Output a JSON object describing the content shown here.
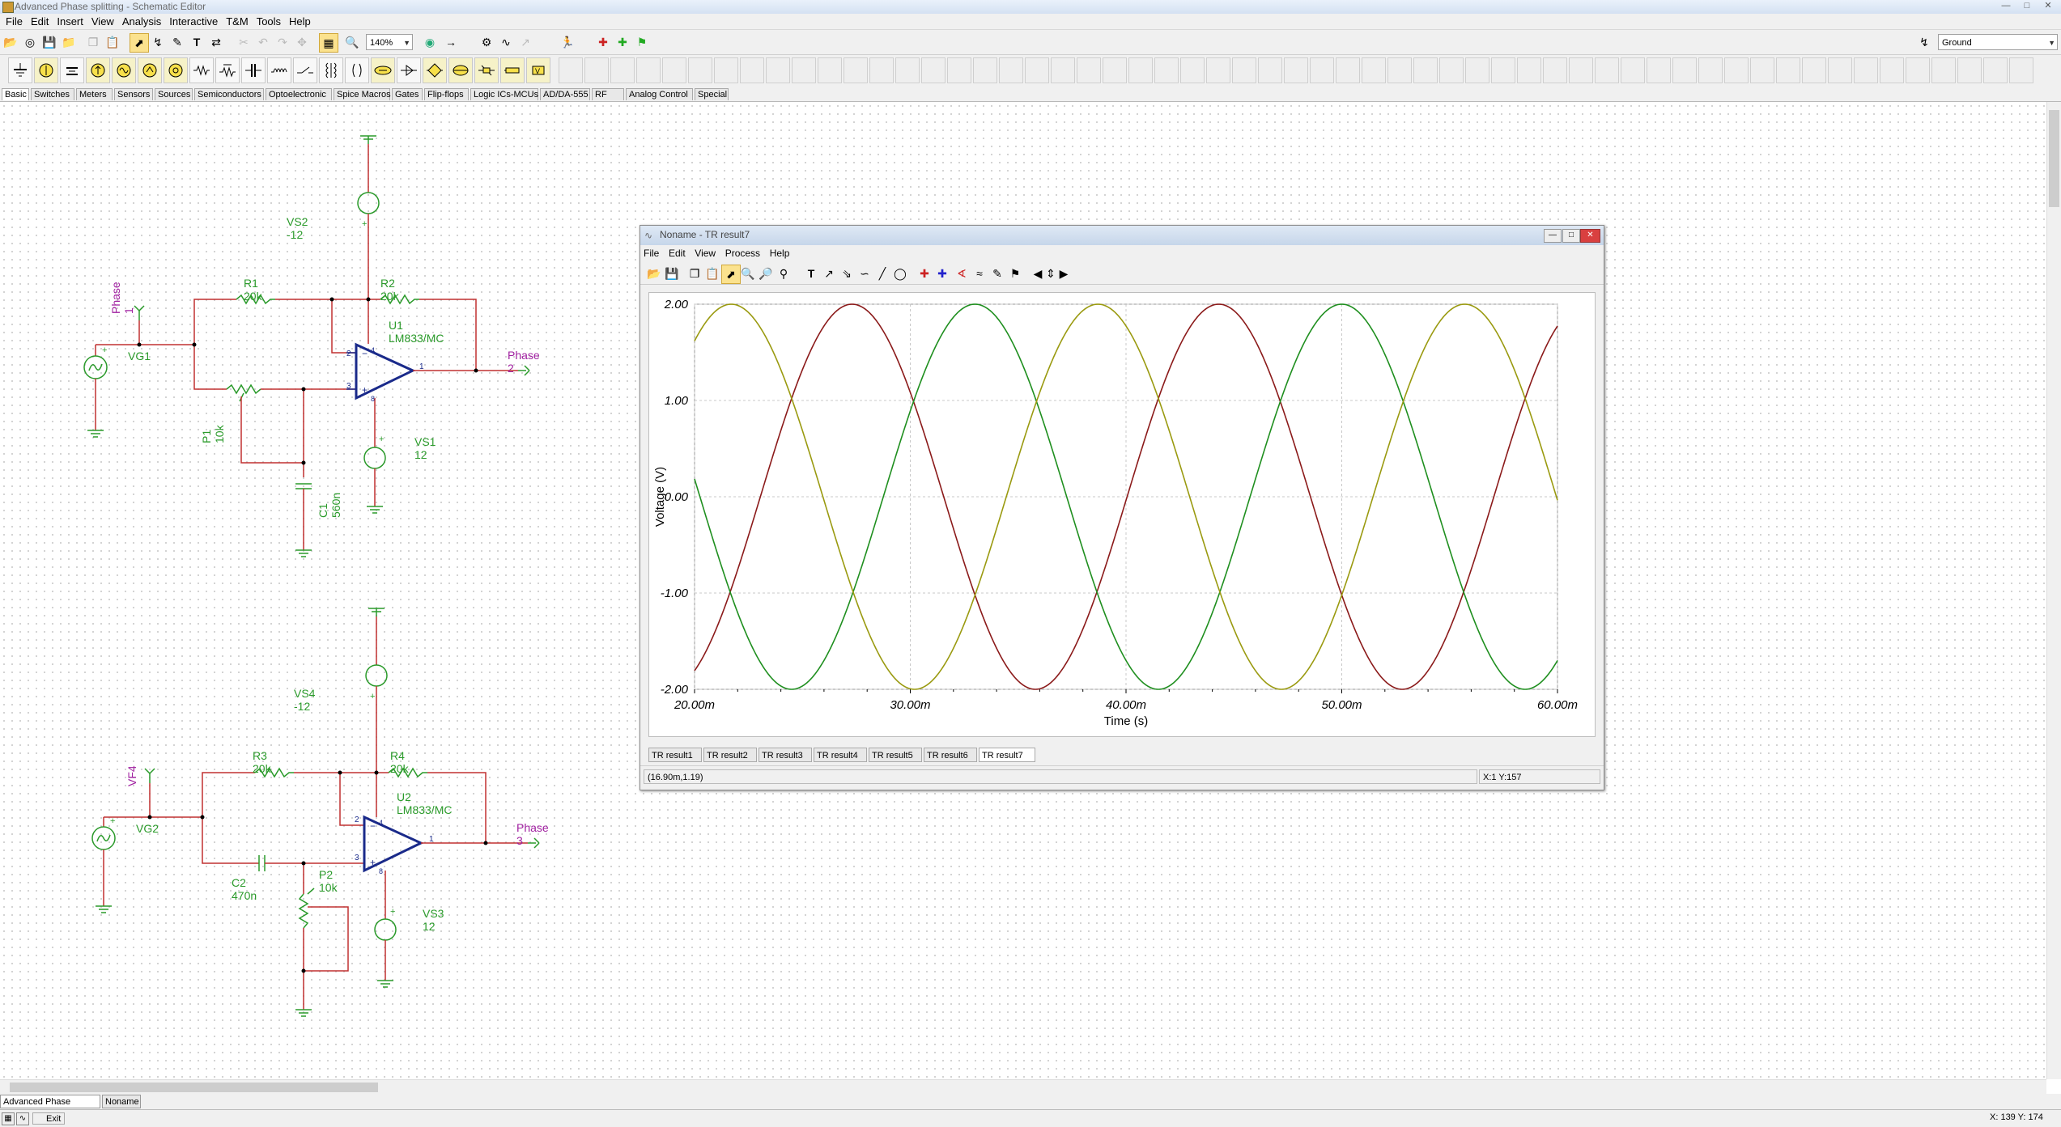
{
  "app": {
    "title": "Advanced Phase splitting - Schematic Editor",
    "menu": [
      "File",
      "Edit",
      "Insert",
      "View",
      "Analysis",
      "Interactive",
      "T&M",
      "Tools",
      "Help"
    ],
    "zoom": "140%",
    "node_select": "Ground"
  },
  "component_tabs": [
    "Basic",
    "Switches",
    "Meters",
    "Sensors",
    "Sources",
    "Semiconductors",
    "Optoelectronic",
    "Spice Macros",
    "Gates",
    "Flip-flops",
    "Logic ICs-MCUs",
    "AD/DA-555",
    "RF",
    "Analog Control",
    "Special"
  ],
  "schematic": {
    "vs2": "VS2 -12",
    "phase1": "Phase 1",
    "r1": "R1 20k",
    "r2": "R2 20k",
    "u1": "U1 LM833/MC",
    "vg1": "VG1",
    "phase2": "Phase 2",
    "p1": "P1 10k",
    "vs1": "VS1 12",
    "c1": "C1 560n",
    "vs4": "VS4 -12",
    "vf4": "VF4",
    "r3": "R3 20k",
    "r4": "R4 20k",
    "u2": "U2 LM833/MC",
    "vg2": "VG2",
    "phase3": "Phase 3",
    "c2": "C2 470n",
    "p2": "P2 10k",
    "vs3": "VS3 12",
    "pin2": "2",
    "pin3": "3",
    "pin1": "1",
    "pin4": "4",
    "pin8": "8",
    "pin2b": "2",
    "pin3b": "3",
    "pin1b": "1",
    "pin4b": "4",
    "pin8b": "8"
  },
  "tr_window": {
    "title": "Noname - TR result7",
    "menu": [
      "File",
      "Edit",
      "View",
      "Process",
      "Help"
    ],
    "tabs": [
      "TR result1",
      "TR result2",
      "TR result3",
      "TR result4",
      "TR result5",
      "TR result6",
      "TR result7"
    ],
    "status_left": "(16.90m,1.19)",
    "status_right": "X:1  Y:157"
  },
  "chart_data": {
    "type": "line",
    "xlabel": "Time (s)",
    "ylabel": "Voltage (V)",
    "xlim": [
      20,
      60
    ],
    "ylim": [
      -2,
      2
    ],
    "x_ticks": [
      "20.00m",
      "30.00m",
      "40.00m",
      "50.00m",
      "60.00m"
    ],
    "y_ticks": [
      "2.00",
      "1.00",
      "0.00",
      "-1.00",
      "-2.00"
    ],
    "grid": true,
    "series": [
      {
        "color": "#8b1a1a",
        "amplitude": 2,
        "period_ms": 17.0,
        "peak_ms": [
          27.3,
          44.3
        ],
        "trough_ms": [
          35.8,
          52.8
        ]
      },
      {
        "color": "#1f8f1f",
        "amplitude": 2,
        "period_ms": 17.0,
        "peak_ms": [
          33.0,
          50.0
        ],
        "trough_ms": [
          24.5,
          41.5,
          58.5
        ]
      },
      {
        "color": "#9a9a10",
        "amplitude": 2,
        "period_ms": 17.0,
        "peak_ms": [
          21.7,
          38.7,
          55.7
        ],
        "trough_ms": [
          30.2,
          47.2
        ]
      }
    ]
  },
  "doc_tabs": [
    "Advanced Phase splitting",
    "Noname"
  ],
  "status": {
    "exit": "Exit",
    "coords": "X: 139  Y: 174"
  }
}
